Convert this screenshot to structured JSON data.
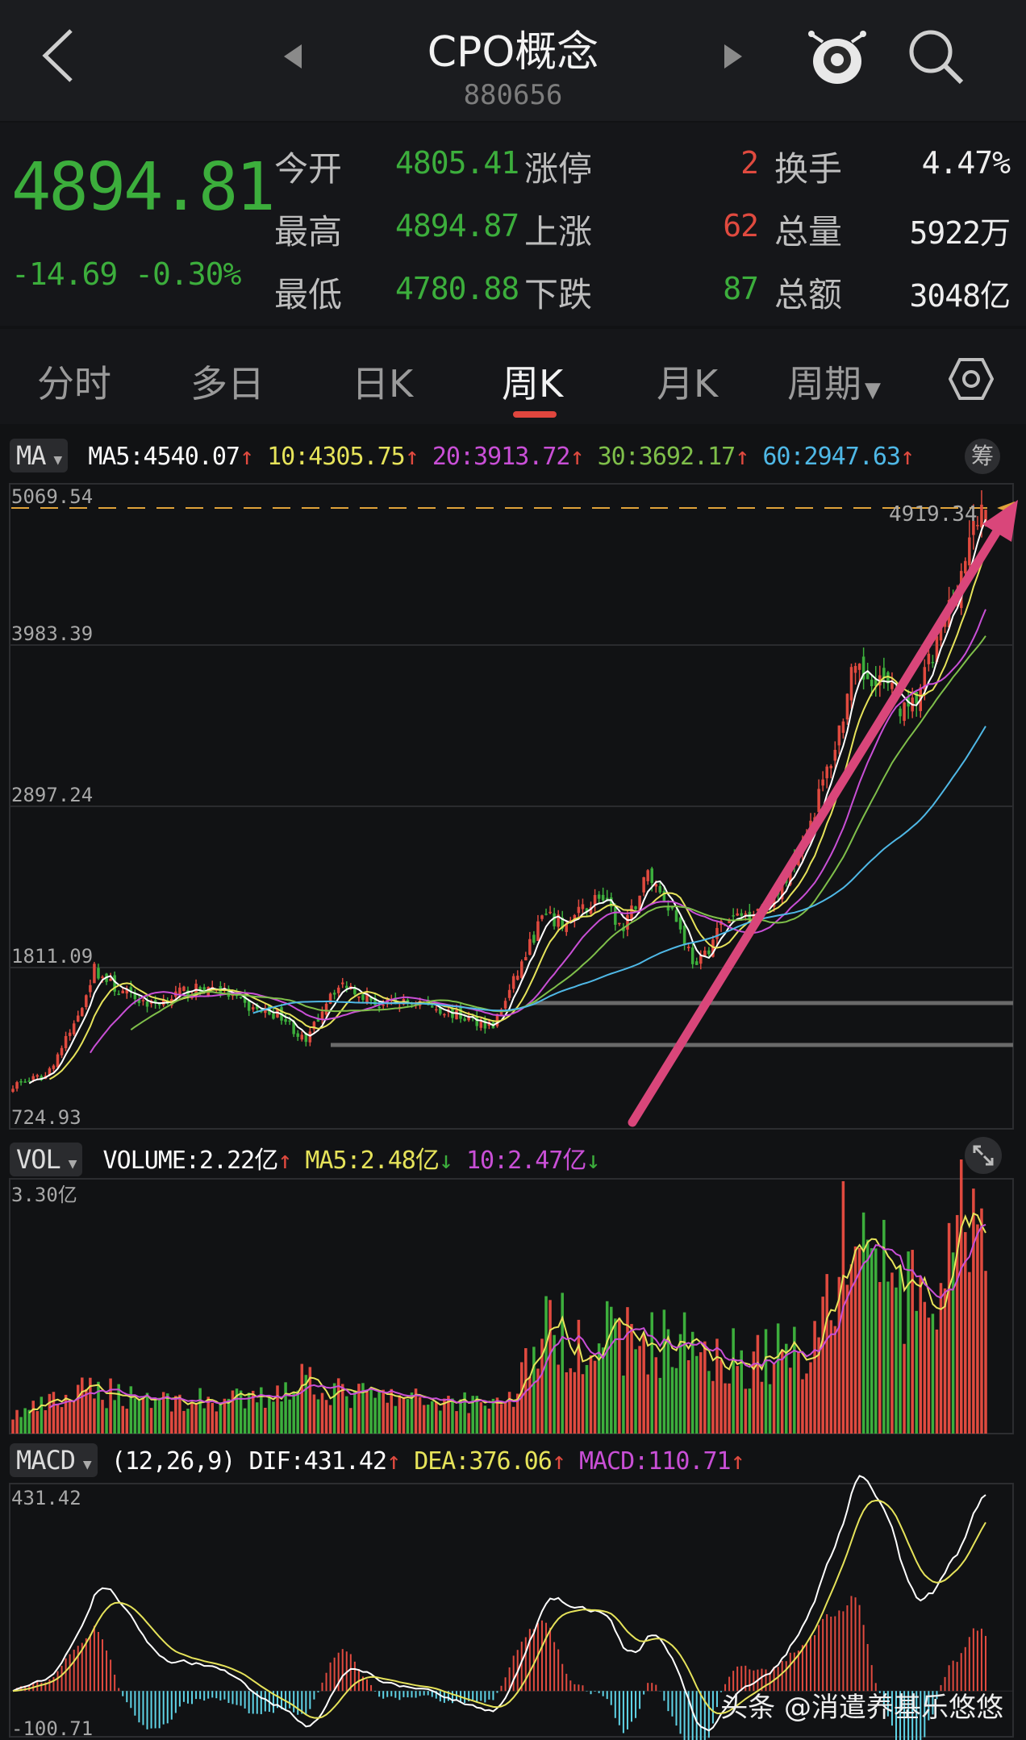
{
  "header": {
    "title": "CPO概念",
    "code": "880656"
  },
  "quote": {
    "price": "4894.81",
    "change": "-14.69",
    "change_pct": "-0.30%",
    "rows": [
      {
        "l1": "今开",
        "v1": "4805.41",
        "l2": "涨停",
        "v2": "2",
        "l3": "换手",
        "v3": "4.47%"
      },
      {
        "l1": "最高",
        "v1": "4894.87",
        "l2": "上涨",
        "v2": "62",
        "l3": "总量",
        "v3": "5922万"
      },
      {
        "l1": "最低",
        "v1": "4780.88",
        "l2": "下跌",
        "v2": "87",
        "l3": "总额",
        "v3": "3048亿"
      }
    ]
  },
  "tabs": [
    "分时",
    "多日",
    "日K",
    "周K",
    "月K",
    "周期"
  ],
  "active_tab": "周K",
  "main_indicator": {
    "name": "MA",
    "ma5": "MA5:4540.07",
    "ma10": "10:4305.75",
    "ma20": "20:3913.72",
    "ma30": "30:3692.17",
    "ma60": "60:2947.63",
    "arrow": "↑",
    "chip_label": "筹"
  },
  "volume_indicator": {
    "name": "VOL",
    "volume": "VOLUME:2.22亿",
    "ma5": "MA5:2.48亿",
    "ma10": "10:2.47亿",
    "up_arrow": "↑",
    "down_arrow": "↓"
  },
  "macd_indicator": {
    "name": "MACD",
    "params": "(12,26,9)",
    "dif": "DIF:431.42",
    "dea": "DEA:376.06",
    "macd": "MACD:110.71",
    "arrow": "↑"
  },
  "icons": {
    "back": "back-arrow-icon",
    "prev": "prev-stock-icon",
    "next": "next-stock-icon",
    "robot": "robot-assistant-icon",
    "search": "search-icon",
    "settings": "hexagon-settings-icon",
    "expand": "expand-icon",
    "dropdown": "dropdown-caret-icon"
  },
  "colors": {
    "up": "#e04a3f",
    "down": "#3cae3c",
    "ma5": "#ffffff",
    "ma10": "#e6e35a",
    "ma20": "#c94fd6",
    "ma30": "#7fbf4a",
    "ma60": "#4fb8e6",
    "arrow": "#d9467a",
    "dash": "#e0a23a"
  },
  "watermark": "头条 @消遣养基乐悠悠",
  "chart_data": {
    "type": "candlestick",
    "price_axis": {
      "ticks": [
        "5069.54",
        "3983.39",
        "2897.24",
        "1811.09",
        "724.93"
      ],
      "ylim": [
        724.93,
        5069.54
      ],
      "current_marker": "4919.34"
    },
    "volume_axis": {
      "ticks": [
        "3.30亿"
      ],
      "ylim": [
        0,
        3.3
      ],
      "unit": "亿"
    },
    "macd_axis": {
      "ticks": [
        "431.42",
        "-100.71"
      ],
      "ylim": [
        -100.71,
        431.42
      ]
    },
    "anchors": [
      [
        0,
        1020
      ],
      [
        8,
        1080
      ],
      [
        15,
        1420
      ],
      [
        20,
        1800
      ],
      [
        26,
        1650
      ],
      [
        34,
        1560
      ],
      [
        42,
        1650
      ],
      [
        50,
        1680
      ],
      [
        58,
        1540
      ],
      [
        66,
        1490
      ],
      [
        72,
        1300
      ],
      [
        78,
        1650
      ],
      [
        82,
        1700
      ],
      [
        90,
        1560
      ],
      [
        100,
        1580
      ],
      [
        110,
        1480
      ],
      [
        118,
        1420
      ],
      [
        122,
        1650
      ],
      [
        130,
        2150
      ],
      [
        136,
        2100
      ],
      [
        144,
        2300
      ],
      [
        150,
        2050
      ],
      [
        156,
        2450
      ],
      [
        162,
        2200
      ],
      [
        168,
        1800
      ],
      [
        174,
        2100
      ],
      [
        182,
        2200
      ],
      [
        188,
        2300
      ],
      [
        196,
        2800
      ],
      [
        202,
        3300
      ],
      [
        206,
        3750
      ],
      [
        212,
        3800
      ],
      [
        220,
        3500
      ],
      [
        226,
        3900
      ],
      [
        232,
        4400
      ],
      [
        238,
        4894
      ]
    ],
    "volume_anchors": [
      [
        0,
        0.25
      ],
      [
        20,
        0.6
      ],
      [
        40,
        0.45
      ],
      [
        60,
        0.45
      ],
      [
        72,
        0.8
      ],
      [
        80,
        0.55
      ],
      [
        100,
        0.45
      ],
      [
        122,
        0.45
      ],
      [
        130,
        1.4
      ],
      [
        150,
        1.3
      ],
      [
        170,
        1.2
      ],
      [
        180,
        1.0
      ],
      [
        196,
        1.2
      ],
      [
        206,
        2.8
      ],
      [
        212,
        2.5
      ],
      [
        220,
        1.8
      ],
      [
        228,
        1.8
      ],
      [
        234,
        2.9
      ],
      [
        238,
        2.22
      ]
    ],
    "macd_final": {
      "dif": 431.42,
      "dea": 376.06,
      "macd": 110.71
    }
  }
}
